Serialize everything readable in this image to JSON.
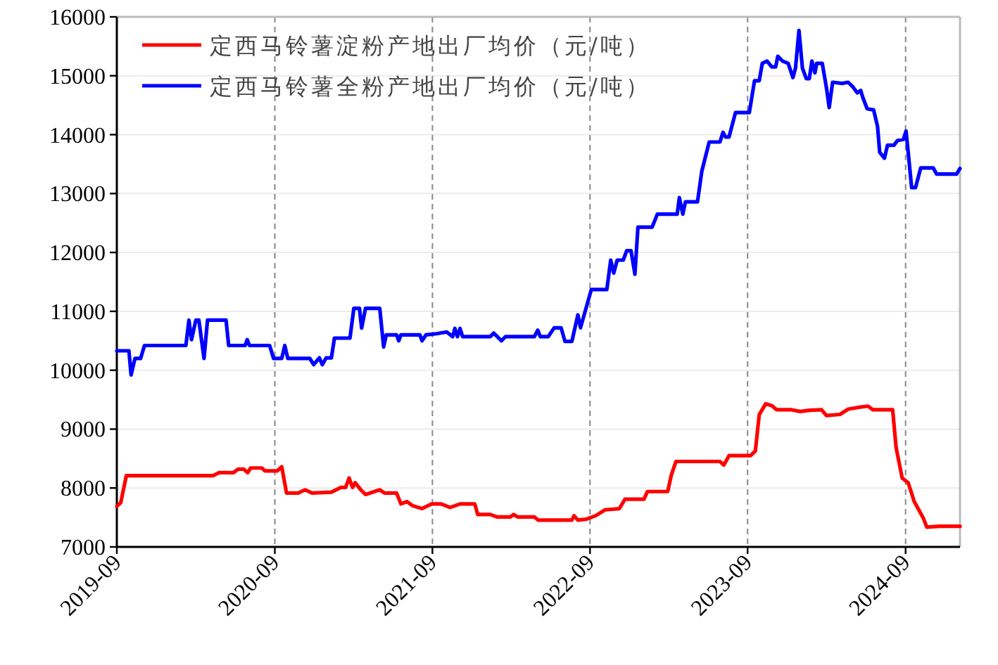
{
  "chart_data": {
    "type": "line",
    "xlim": [
      "2019-09-01",
      "2025-01-05"
    ],
    "xticks": [
      "2019-09",
      "2020-09",
      "2021-09",
      "2022-09",
      "2023-09",
      "2024-09"
    ],
    "ylim": [
      7000,
      16000
    ],
    "yticks": [
      7000,
      8000,
      9000,
      10000,
      11000,
      12000,
      13000,
      14000,
      15000,
      16000
    ],
    "grid": true,
    "legend": "top left",
    "marker": "none",
    "line_style": "solid",
    "series": [
      {
        "name": "定西马铃薯淀粉产地出厂均价（元/吨）",
        "color": "#ff0000",
        "x": [
          "2019-09-01",
          "2019-09-10",
          "2019-09-23",
          "2020-04-11",
          "2020-04-25",
          "2020-05-28",
          "2020-06-08",
          "2020-06-21",
          "2020-06-30",
          "2020-07-07",
          "2020-08-02",
          "2020-08-09",
          "2020-09-06",
          "2020-09-17",
          "2020-09-28",
          "2020-10-25",
          "2020-11-10",
          "2020-11-26",
          "2021-01-10",
          "2021-02-01",
          "2021-02-12",
          "2021-02-20",
          "2021-02-28",
          "2021-03-06",
          "2021-03-19",
          "2021-03-30",
          "2021-05-02",
          "2021-05-13",
          "2021-06-10",
          "2021-06-20",
          "2021-07-04",
          "2021-07-17",
          "2021-08-08",
          "2021-08-30",
          "2021-09-21",
          "2021-10-12",
          "2021-11-04",
          "2021-12-08",
          "2021-12-15",
          "2022-01-13",
          "2022-01-28",
          "2022-03-01",
          "2022-03-08",
          "2022-03-17",
          "2022-04-25",
          "2022-05-04",
          "2022-07-21",
          "2022-07-26",
          "2022-08-04",
          "2022-08-23",
          "2022-09-14",
          "2022-10-06",
          "2022-11-08",
          "2022-11-21",
          "2023-01-04",
          "2023-01-12",
          "2023-02-28",
          "2023-03-08",
          "2023-03-19",
          "2023-06-29",
          "2023-07-08",
          "2023-07-20",
          "2023-09-08",
          "2023-09-19",
          "2023-09-28",
          "2023-10-13",
          "2023-10-27",
          "2023-11-07",
          "2023-12-10",
          "2024-01-01",
          "2024-01-22",
          "2024-02-19",
          "2024-03-02",
          "2024-04-02",
          "2024-04-21",
          "2024-05-15",
          "2024-06-06",
          "2024-06-17",
          "2024-08-02",
          "2024-08-10",
          "2024-08-24",
          "2024-09-07",
          "2024-09-21",
          "2024-10-12",
          "2024-10-20",
          "2024-11-17",
          "2025-01-05"
        ],
        "values": [
          7690,
          7750,
          8210,
          8210,
          8260,
          8260,
          8320,
          8320,
          8260,
          8340,
          8340,
          8290,
          8290,
          8360,
          7915,
          7915,
          7970,
          7915,
          7930,
          8010,
          8010,
          8170,
          8010,
          8090,
          7970,
          7890,
          7970,
          7915,
          7915,
          7730,
          7770,
          7700,
          7650,
          7730,
          7730,
          7670,
          7730,
          7730,
          7550,
          7550,
          7510,
          7510,
          7550,
          7510,
          7510,
          7455,
          7455,
          7530,
          7455,
          7470,
          7530,
          7630,
          7650,
          7810,
          7810,
          7940,
          7940,
          8210,
          8450,
          8450,
          8390,
          8550,
          8550,
          8630,
          9245,
          9430,
          9400,
          9330,
          9330,
          9300,
          9320,
          9330,
          9230,
          9250,
          9340,
          9370,
          9390,
          9330,
          9330,
          8690,
          8170,
          8090,
          7770,
          7490,
          7335,
          7350,
          7350
        ]
      },
      {
        "name": "定西马铃薯全粉产地出厂均价（元/吨）",
        "color": "#0000ff",
        "x": [
          "2019-09-01",
          "2019-09-29",
          "2019-10-04",
          "2019-10-13",
          "2019-10-26",
          "2019-11-04",
          "2020-02-08",
          "2020-02-15",
          "2020-02-21",
          "2020-03-02",
          "2020-03-09",
          "2020-03-21",
          "2020-03-29",
          "2020-05-11",
          "2020-05-17",
          "2020-06-24",
          "2020-06-29",
          "2020-07-04",
          "2020-08-20",
          "2020-08-29",
          "2020-09-17",
          "2020-09-24",
          "2020-10-01",
          "2020-11-21",
          "2020-11-30",
          "2020-12-13",
          "2020-12-20",
          "2020-12-29",
          "2021-01-10",
          "2021-01-17",
          "2021-02-22",
          "2021-03-03",
          "2021-03-16",
          "2021-03-21",
          "2021-03-30",
          "2021-05-02",
          "2021-05-11",
          "2021-05-17",
          "2021-06-10",
          "2021-06-15",
          "2021-06-20",
          "2021-08-03",
          "2021-08-08",
          "2021-08-17",
          "2021-09-10",
          "2021-10-04",
          "2021-10-18",
          "2021-10-23",
          "2021-10-29",
          "2021-11-04",
          "2021-11-10",
          "2022-01-13",
          "2022-01-21",
          "2022-02-08",
          "2022-02-17",
          "2022-04-25",
          "2022-05-03",
          "2022-05-09",
          "2022-05-27",
          "2022-06-10",
          "2022-06-26",
          "2022-07-05",
          "2022-07-21",
          "2022-08-04",
          "2022-08-10",
          "2022-09-04",
          "2022-10-10",
          "2022-10-19",
          "2022-10-26",
          "2022-11-03",
          "2022-11-17",
          "2022-11-25",
          "2022-12-05",
          "2022-12-14",
          "2022-12-21",
          "2023-01-23",
          "2023-02-04",
          "2023-03-22",
          "2023-03-27",
          "2023-04-04",
          "2023-04-10",
          "2023-05-08",
          "2023-05-18",
          "2023-06-04",
          "2023-06-29",
          "2023-07-06",
          "2023-07-12",
          "2023-07-20",
          "2023-08-04",
          "2023-09-05",
          "2023-09-17",
          "2023-09-28",
          "2023-10-05",
          "2023-10-16",
          "2023-10-27",
          "2023-11-05",
          "2023-11-10",
          "2023-11-21",
          "2023-12-04",
          "2023-12-15",
          "2023-12-21",
          "2023-12-29",
          "2024-01-06",
          "2024-01-15",
          "2024-01-22",
          "2024-01-28",
          "2024-02-04",
          "2024-02-08",
          "2024-02-21",
          "2024-03-02",
          "2024-03-08",
          "2024-03-16",
          "2024-04-07",
          "2024-04-21",
          "2024-05-02",
          "2024-05-12",
          "2024-05-20",
          "2024-05-25",
          "2024-06-04",
          "2024-06-19",
          "2024-06-28",
          "2024-07-03",
          "2024-07-14",
          "2024-07-21",
          "2024-08-05",
          "2024-08-13",
          "2024-08-27",
          "2024-09-02",
          "2024-09-07",
          "2024-09-15",
          "2024-09-24",
          "2024-10-06",
          "2024-11-04",
          "2024-11-12",
          "2024-12-28",
          "2025-01-05"
        ],
        "values": [
          10330,
          10330,
          9920,
          10200,
          10200,
          10420,
          10420,
          10850,
          10520,
          10850,
          10850,
          10200,
          10850,
          10850,
          10420,
          10420,
          10520,
          10420,
          10420,
          10200,
          10200,
          10420,
          10200,
          10200,
          10095,
          10210,
          10095,
          10210,
          10210,
          10545,
          10545,
          11050,
          11050,
          10715,
          11050,
          11050,
          10395,
          10600,
          10600,
          10500,
          10600,
          10600,
          10500,
          10600,
          10620,
          10650,
          10570,
          10710,
          10570,
          10710,
          10570,
          10570,
          10630,
          10500,
          10570,
          10570,
          10680,
          10570,
          10570,
          10720,
          10720,
          10490,
          10490,
          10940,
          10720,
          11370,
          11370,
          11870,
          11650,
          11870,
          11870,
          12030,
          12030,
          11630,
          12430,
          12430,
          12650,
          12650,
          12930,
          12650,
          12860,
          12860,
          13380,
          13875,
          13875,
          14040,
          13960,
          13960,
          14375,
          14375,
          14915,
          14915,
          15210,
          15250,
          15150,
          15150,
          15330,
          15250,
          15210,
          14970,
          15130,
          15770,
          15130,
          14950,
          14950,
          15250,
          15050,
          15210,
          15210,
          14780,
          14460,
          14890,
          14870,
          14890,
          14810,
          14710,
          14750,
          14630,
          14440,
          14420,
          14140,
          13700,
          13600,
          13820,
          13820,
          13900,
          13920,
          14060,
          13700,
          13100,
          13100,
          13435,
          13435,
          13330,
          13330,
          13425
        ]
      }
    ]
  }
}
